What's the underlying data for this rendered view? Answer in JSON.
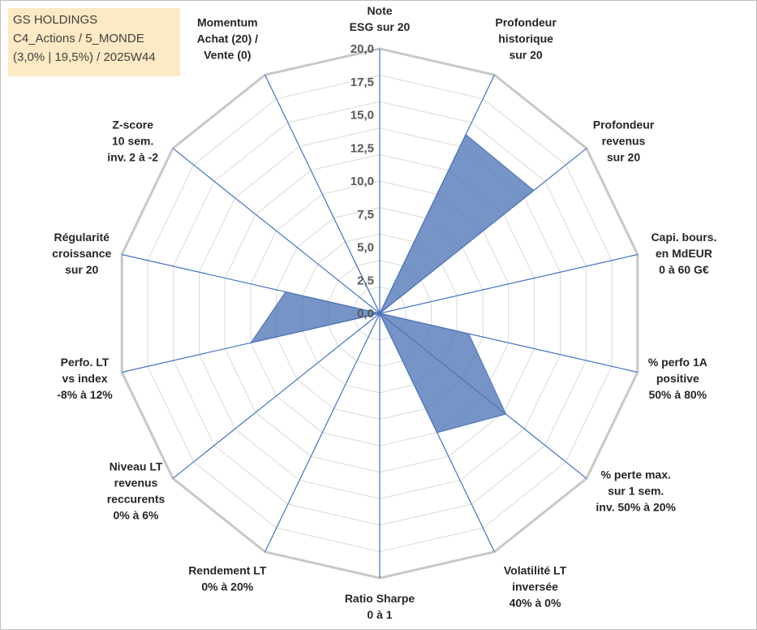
{
  "header": {
    "line1": "GS HOLDINGS",
    "line2": "C4_Actions / 5_MONDE",
    "line3": "(3,0% | 19,5%) / 2025W44"
  },
  "colors": {
    "series_fill": "#4f76b5",
    "spoke": "#4472c4",
    "grid": "#d9d9d9",
    "title_bg": "#fde9c3"
  },
  "chart_data": {
    "type": "radar",
    "rmax": 20,
    "tick_values": [
      0,
      2.5,
      5,
      7.5,
      10,
      12.5,
      15,
      17.5,
      20
    ],
    "tick_labels": [
      "0,0",
      "2,5",
      "5,0",
      "7,5",
      "10,0",
      "12,5",
      "15,0",
      "17,5",
      "20,0"
    ],
    "categories": [
      [
        "Note",
        "ESG sur 20"
      ],
      [
        "Profondeur",
        "historique",
        "sur 20"
      ],
      [
        "Profondeur",
        "revenus",
        "sur 20"
      ],
      [
        "Capi. bours.",
        "en MdEUR",
        "0 à 60 G€"
      ],
      [
        "% perfo 1A",
        "positive",
        "50% à 80%"
      ],
      [
        "% perte max.",
        "sur 1 sem.",
        "inv. 50% à 20%"
      ],
      [
        "Volatilité LT",
        "inversée",
        "40% à 0%"
      ],
      [
        "Ratio Sharpe",
        "0 à 1"
      ],
      [
        "Rendement LT",
        "0% à 20%"
      ],
      [
        "Niveau LT",
        "revenus",
        "reccurents",
        "0% à 6%"
      ],
      [
        "Perfo. LT",
        "vs index",
        "-8% à 12%"
      ],
      [
        "Régularité",
        "croissance",
        "sur 20"
      ],
      [
        "Z-score",
        "10 sem.",
        "inv. 2 à -2"
      ],
      [
        "Momentum",
        "Achat (20) /",
        "Vente (0)"
      ]
    ],
    "series": [
      {
        "name": "GS HOLDINGS",
        "values": [
          0,
          15.0,
          14.9,
          0,
          6.9,
          12.2,
          10.0,
          0,
          0,
          0,
          10.0,
          7.3,
          0,
          4.5
        ]
      }
    ]
  }
}
